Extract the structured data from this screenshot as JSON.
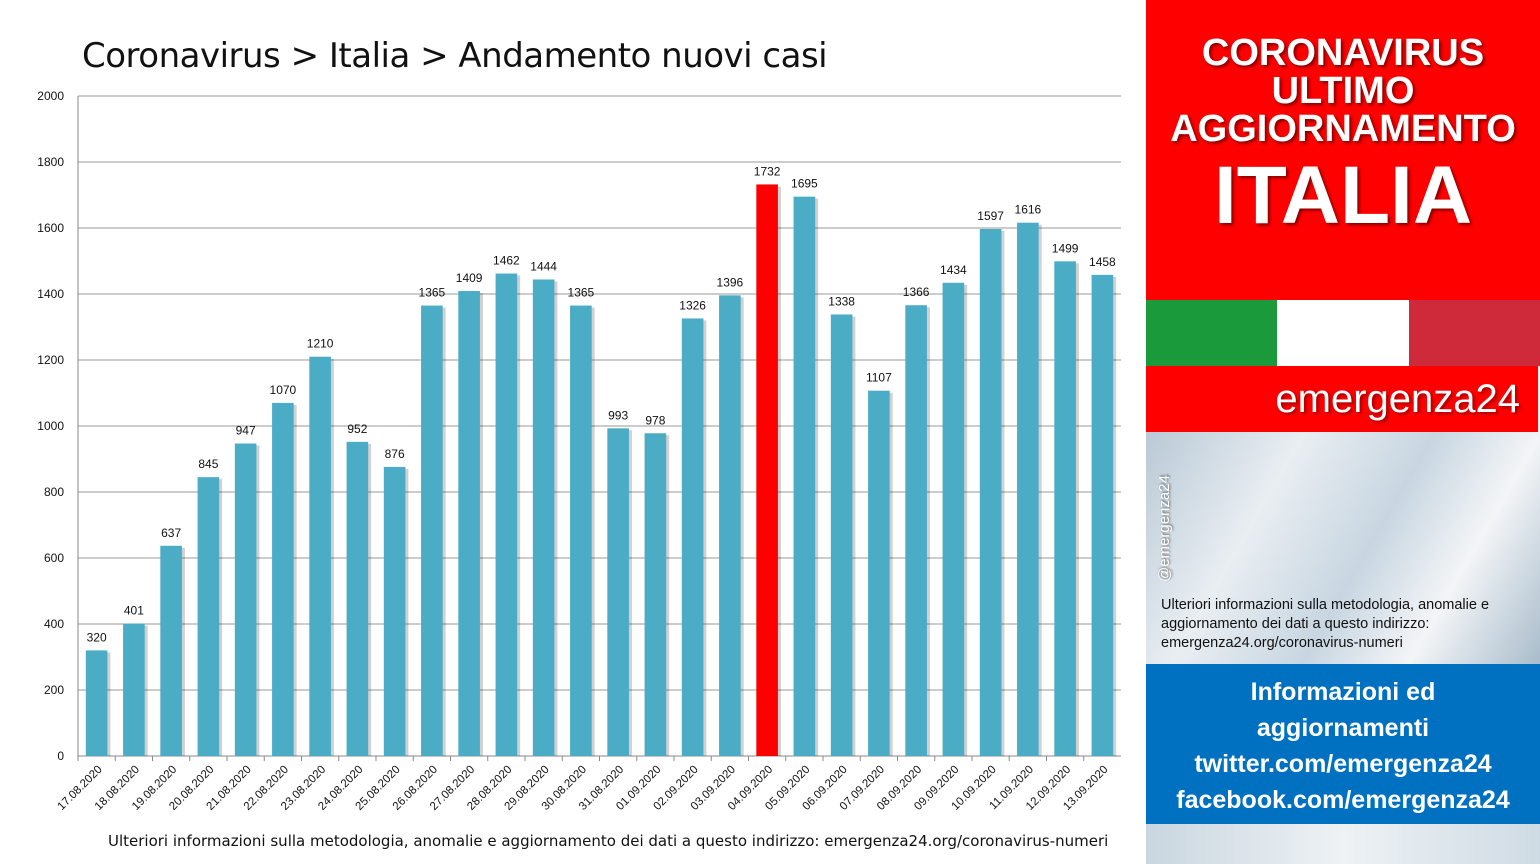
{
  "title": "Coronavirus > Italia > Andamento nuovi casi",
  "footer_note": "Ulteriori informazioni sulla metodologia, anomalie e aggiornamento dei dati a questo indirizzo: emergenza24.org/coronavirus-numeri",
  "chart_data": {
    "type": "bar",
    "title": "Coronavirus > Italia > Andamento nuovi casi",
    "xlabel": "",
    "ylabel": "",
    "ylim": [
      0,
      2000
    ],
    "yticks": [
      0,
      200,
      400,
      600,
      800,
      1000,
      1200,
      1400,
      1600,
      1800,
      2000
    ],
    "grid": true,
    "categories": [
      "17.08.2020",
      "18.08.2020",
      "19.08.2020",
      "20.08.2020",
      "21.08.2020",
      "22.08.2020",
      "23.08.2020",
      "24.08.2020",
      "25.08.2020",
      "26.08.2020",
      "27.08.2020",
      "28.08.2020",
      "29.08.2020",
      "30.08.2020",
      "31.08.2020",
      "01.09.2020",
      "02.09.2020",
      "03.09.2020",
      "04.09.2020",
      "05.09.2020",
      "06.09.2020",
      "07.09.2020",
      "08.09.2020",
      "09.09.2020",
      "10.09.2020",
      "11.09.2020",
      "12.09.2020",
      "13.09.2020"
    ],
    "values": [
      320,
      401,
      637,
      845,
      947,
      1070,
      1210,
      952,
      876,
      1365,
      1409,
      1462,
      1444,
      1365,
      993,
      978,
      1326,
      1396,
      1732,
      1695,
      1338,
      1107,
      1366,
      1434,
      1597,
      1616,
      1499,
      1458
    ],
    "bar_color": "#4bacc6",
    "highlight_color": "#ff0000",
    "highlight_category": "04.09.2020"
  },
  "side": {
    "banner_line1": "CORONAVIRUS",
    "banner_line2": "ULTIMO",
    "banner_line3": "AGGIORNAMENTO",
    "banner_big": "ITALIA",
    "brand": "emergenza24",
    "handle": "@emergenza24",
    "note": "Ulteriori informazioni sulla metodologia, anomalie e aggiornamento dei dati a questo indirizzo: emergenza24.org/coronavirus-numeri",
    "info_line1": "Informazioni ed",
    "info_line2": "aggiornamenti",
    "info_line3": "twitter.com/emergenza24",
    "info_line4": "facebook.com/emergenza24"
  }
}
